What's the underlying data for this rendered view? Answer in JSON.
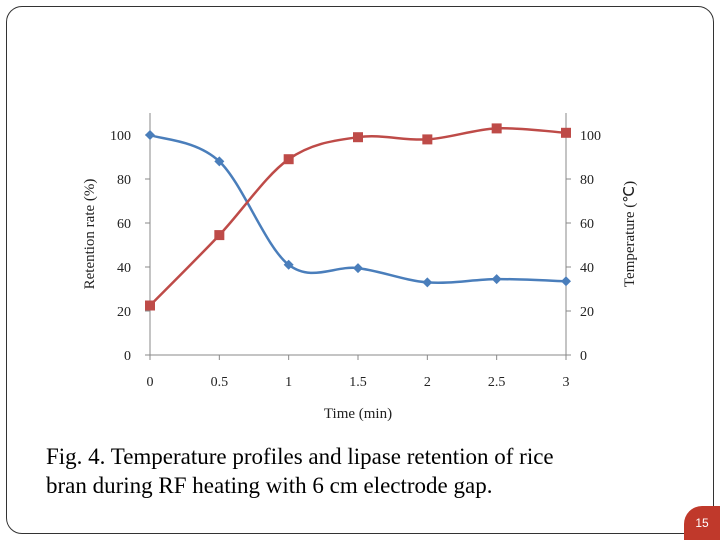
{
  "caption": {
    "line1": "Fig. 4. Temperature profiles and lipase retention of  rice",
    "line2": "bran during RF heating with 6 cm electrode gap."
  },
  "page_number": "15",
  "colors": {
    "retention": "#4a7ebb",
    "temperature": "#be4b48",
    "accent": "#c0392b"
  },
  "chart_data": {
    "type": "line",
    "title": "",
    "xlabel": "Time (min)",
    "ylabel": "Retention rate (%)",
    "y2label": "Temperature (℃)",
    "x": [
      0,
      0.5,
      1,
      1.5,
      2,
      2.5,
      3
    ],
    "x_tick_labels": [
      "0",
      "0.5",
      "1",
      "1.5",
      "2",
      "2.5",
      "3"
    ],
    "xlim": [
      0,
      3
    ],
    "ylim": [
      0,
      100
    ],
    "y2lim": [
      0,
      100
    ],
    "y_ticks": [
      "0",
      "20",
      "40",
      "60",
      "80",
      "100"
    ],
    "y2_ticks": [
      "0",
      "20",
      "40",
      "60",
      "80",
      "100"
    ],
    "grid": false,
    "legend": "none",
    "series": [
      {
        "id": "retention",
        "axis": "left",
        "marker": "diamond",
        "smooth": true,
        "values": [
          100,
          88,
          41,
          39.5,
          33,
          34.5,
          33.5
        ]
      },
      {
        "id": "temperature",
        "axis": "right",
        "marker": "square",
        "smooth": true,
        "values": [
          22.5,
          54.5,
          89,
          99,
          98,
          103,
          101
        ]
      }
    ]
  }
}
